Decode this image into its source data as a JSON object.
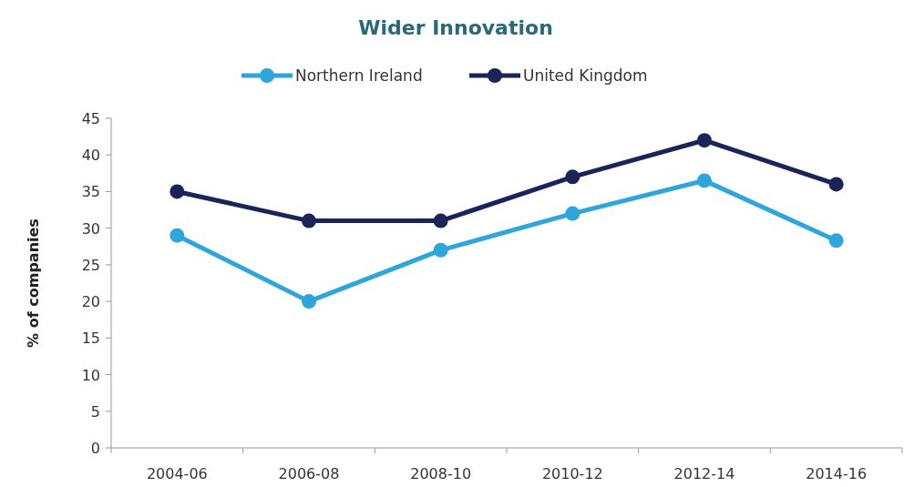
{
  "chart_data": {
    "type": "line",
    "title": "Wider Innovation",
    "ylabel": "% of companies",
    "categories": [
      "2004-06",
      "2006-08",
      "2008-10",
      "2010-12",
      "2012-14",
      "2014-16"
    ],
    "series": [
      {
        "name": "Northern Ireland",
        "color": "#2ea6dc",
        "values": [
          29,
          20,
          27,
          32,
          36.5,
          28.3
        ]
      },
      {
        "name": "United Kingdom",
        "color": "#1a2459",
        "values": [
          35,
          31,
          31,
          37,
          42,
          36
        ]
      }
    ],
    "ylim": [
      0,
      45
    ],
    "yticks": [
      0,
      5,
      10,
      15,
      20,
      25,
      30,
      35,
      40,
      45
    ],
    "legend": "top",
    "marker": "circle",
    "grid": false
  }
}
